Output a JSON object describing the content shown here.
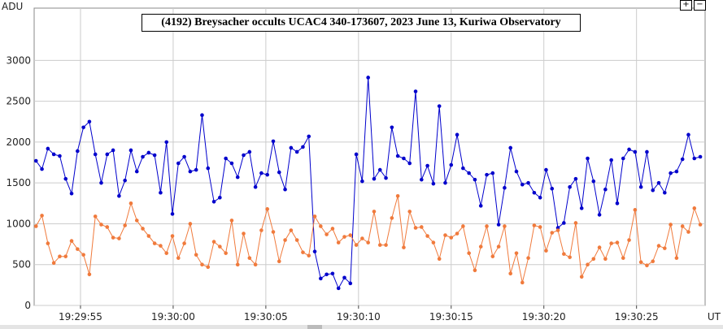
{
  "chart_data": {
    "type": "line",
    "title": "(4192) Breysacher occults UCAC4 340-173607, 2023 June 13, Kuriwa Observatory",
    "y_label": "ADU",
    "x_label": "UT",
    "xlim": [
      70192.5,
      70228.7
    ],
    "ylim": [
      0,
      3640
    ],
    "xticks": [
      {
        "value": 70195,
        "label": "19:29:55"
      },
      {
        "value": 70200,
        "label": "19:30:00"
      },
      {
        "value": 70205,
        "label": "19:30:05"
      },
      {
        "value": 70210,
        "label": "19:30:10"
      },
      {
        "value": 70215,
        "label": "19:30:15"
      },
      {
        "value": 70220,
        "label": "19:30:20"
      },
      {
        "value": 70225,
        "label": "19:30:25"
      }
    ],
    "yticks": [
      0,
      500,
      1000,
      1500,
      2000,
      2500,
      3000
    ],
    "grid": true,
    "x": [
      70192.6,
      70192.92,
      70193.24,
      70193.56,
      70193.88,
      70194.2,
      70194.52,
      70194.84,
      70195.16,
      70195.48,
      70195.8,
      70196.12,
      70196.44,
      70196.76,
      70197.08,
      70197.4,
      70197.72,
      70198.04,
      70198.36,
      70198.68,
      70199.0,
      70199.32,
      70199.64,
      70199.96,
      70200.28,
      70200.6,
      70200.92,
      70201.24,
      70201.56,
      70201.88,
      70202.2,
      70202.52,
      70202.84,
      70203.16,
      70203.48,
      70203.8,
      70204.12,
      70204.44,
      70204.76,
      70205.08,
      70205.4,
      70205.72,
      70206.04,
      70206.36,
      70206.68,
      70207.0,
      70207.32,
      70207.64,
      70207.96,
      70208.28,
      70208.6,
      70208.92,
      70209.24,
      70209.56,
      70209.88,
      70210.2,
      70210.52,
      70210.84,
      70211.16,
      70211.48,
      70211.8,
      70212.12,
      70212.44,
      70212.76,
      70213.08,
      70213.4,
      70213.72,
      70214.04,
      70214.36,
      70214.68,
      70215.0,
      70215.32,
      70215.64,
      70215.96,
      70216.28,
      70216.6,
      70216.92,
      70217.24,
      70217.56,
      70217.88,
      70218.2,
      70218.52,
      70218.84,
      70219.16,
      70219.48,
      70219.8,
      70220.12,
      70220.44,
      70220.76,
      70221.08,
      70221.4,
      70221.72,
      70222.04,
      70222.36,
      70222.68,
      70223.0,
      70223.32,
      70223.64,
      70223.96,
      70224.28,
      70224.6,
      70224.92,
      70225.24,
      70225.56,
      70225.88,
      70226.2,
      70226.52,
      70226.84,
      70227.16,
      70227.48,
      70227.8,
      70228.12,
      70228.44
    ],
    "series": [
      {
        "color": "#0000cc",
        "values": [
          1770,
          1670,
          1920,
          1850,
          1830,
          1550,
          1370,
          1890,
          2180,
          2250,
          1850,
          1500,
          1850,
          1900,
          1340,
          1530,
          1900,
          1640,
          1820,
          1870,
          1840,
          1380,
          2000,
          1120,
          1740,
          1820,
          1640,
          1660,
          2330,
          1680,
          1270,
          1320,
          1800,
          1740,
          1570,
          1840,
          1880,
          1450,
          1620,
          1600,
          2010,
          1630,
          1420,
          1930,
          1880,
          1940,
          2070,
          660,
          330,
          380,
          390,
          210,
          340,
          270,
          1850,
          1520,
          2790,
          1550,
          1660,
          1560,
          2180,
          1830,
          1800,
          1740,
          2620,
          1540,
          1710,
          1490,
          2440,
          1500,
          1720,
          2090,
          1680,
          1620,
          1540,
          1220,
          1600,
          1620,
          990,
          1440,
          1930,
          1640,
          1480,
          1500,
          1380,
          1320,
          1660,
          1430,
          950,
          1010,
          1450,
          1550,
          1190,
          1800,
          1520,
          1110,
          1420,
          1780,
          1250,
          1800,
          1910,
          1880,
          1450,
          1880,
          1410,
          1500,
          1380,
          1620,
          1640,
          1790,
          2090,
          1800,
          1820
        ]
      },
      {
        "color": "#f07a3c",
        "values": [
          970,
          1100,
          760,
          520,
          600,
          600,
          790,
          690,
          620,
          380,
          1090,
          990,
          960,
          830,
          820,
          980,
          1250,
          1040,
          940,
          850,
          760,
          730,
          640,
          850,
          580,
          760,
          1000,
          620,
          500,
          470,
          780,
          720,
          640,
          1040,
          500,
          880,
          580,
          500,
          920,
          1180,
          900,
          540,
          800,
          920,
          800,
          650,
          610,
          1090,
          970,
          870,
          940,
          770,
          840,
          860,
          740,
          820,
          770,
          1150,
          740,
          740,
          1070,
          1340,
          710,
          1150,
          950,
          960,
          850,
          770,
          570,
          860,
          830,
          880,
          970,
          640,
          430,
          720,
          970,
          600,
          720,
          970,
          390,
          640,
          280,
          580,
          980,
          960,
          670,
          890,
          920,
          630,
          590,
          1010,
          350,
          500,
          570,
          710,
          570,
          760,
          770,
          580,
          800,
          1170,
          530,
          490,
          540,
          730,
          700,
          990,
          580,
          970,
          900,
          1190,
          990
        ]
      }
    ]
  }
}
